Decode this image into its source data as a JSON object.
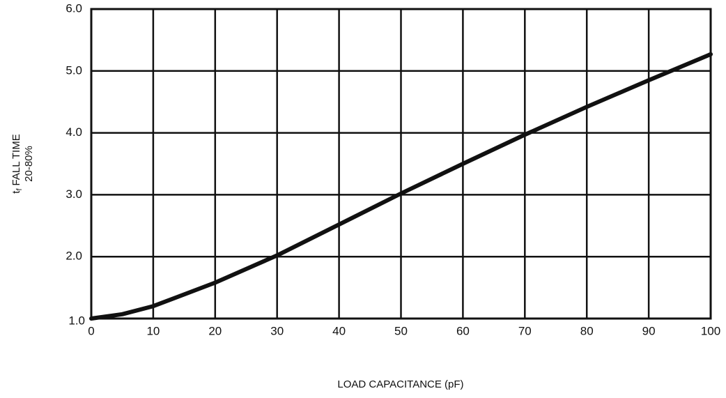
{
  "chart_data": {
    "type": "line",
    "x_label": "LOAD CAPACITANCE (pF)",
    "y_label": {
      "symbol": "t",
      "subscript": "f",
      "text": "FALL TIME",
      "line2": "20-80%"
    },
    "x": [
      0,
      5,
      10,
      20,
      30,
      40,
      50,
      60,
      70,
      80,
      90,
      100
    ],
    "values": [
      1.0,
      1.07,
      1.2,
      1.58,
      2.02,
      2.52,
      3.02,
      3.5,
      3.97,
      4.42,
      4.85,
      5.27
    ],
    "color": "#111111",
    "xlim": [
      0,
      100
    ],
    "xticks": [
      0,
      10,
      20,
      30,
      40,
      50,
      60,
      70,
      80,
      90,
      100
    ],
    "ylim": [
      1,
      6
    ],
    "yticks": [
      {
        "value": 1,
        "label": "1.0"
      },
      {
        "value": 2,
        "label": "2.0"
      },
      {
        "value": 3,
        "label": "3.0"
      },
      {
        "value": 4,
        "label": "4.0"
      },
      {
        "value": 5,
        "label": "5.0"
      },
      {
        "value": 6,
        "label": "6.0"
      }
    ],
    "grid": true
  }
}
